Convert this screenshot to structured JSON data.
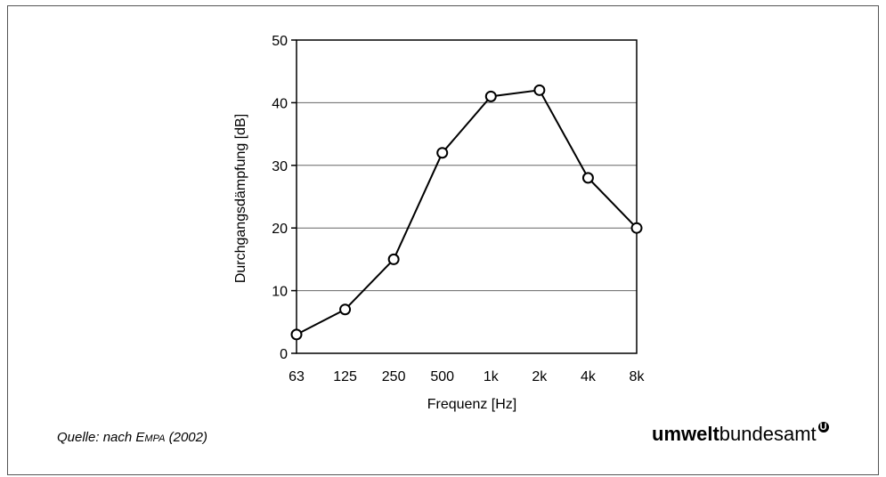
{
  "chart_data": {
    "type": "line",
    "title": "",
    "xlabel": "Frequenz [Hz]",
    "ylabel": "Durchgangsdämpfung [dB]",
    "categories": [
      "63",
      "125",
      "250",
      "500",
      "1k",
      "2k",
      "4k",
      "8k"
    ],
    "values": [
      3,
      7,
      15,
      32,
      41,
      42,
      28,
      20
    ],
    "ylim": [
      0,
      50
    ],
    "yticks": [
      0,
      10,
      20,
      30,
      40,
      50
    ],
    "grid": "horizontal",
    "marker": "open-circle"
  },
  "source": {
    "prefix": "Quelle:  nach E",
    "smallcaps": "MPA",
    "suffix": " (2002)"
  },
  "logo": {
    "bold": "umwelt",
    "regular": "bundesamt",
    "mark": "U"
  }
}
